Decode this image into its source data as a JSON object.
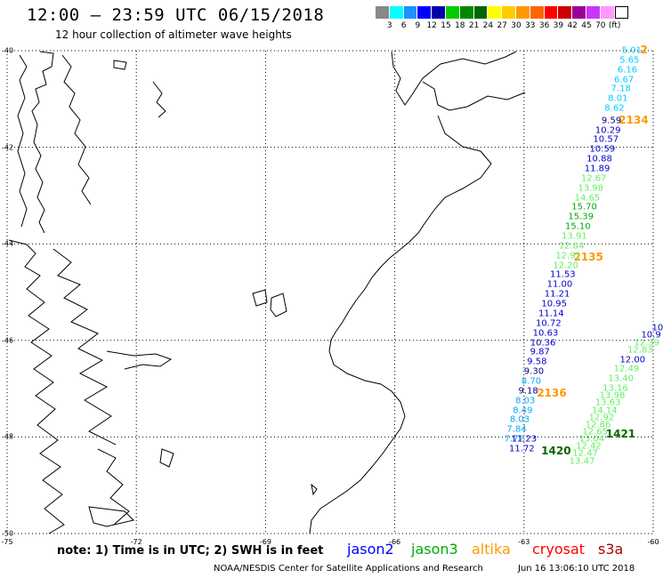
{
  "header": {
    "title": "12:00 – 23:59 UTC 06/15/2018",
    "subtitle": "12 hour collection of altimeter wave heights"
  },
  "legend": {
    "colors": [
      "#888888",
      "#00ffff",
      "#1e90ff",
      "#0000ff",
      "#0000aa",
      "#00cc00",
      "#008800",
      "#006600",
      "#ffff00",
      "#ffcc00",
      "#ff9900",
      "#ff6600",
      "#ff0000",
      "#cc0000",
      "#990099",
      "#cc33ff",
      "#ff99ff",
      "#ffffff"
    ],
    "labels": [
      "3",
      "6",
      "9",
      "12",
      "15",
      "18",
      "21",
      "24",
      "27",
      "30",
      "33",
      "36",
      "39",
      "42",
      "45",
      "70",
      "(ft)"
    ]
  },
  "axes": {
    "lon": [
      "-75",
      "-72",
      "-69",
      "-66",
      "-63",
      "-60"
    ],
    "lat": [
      "-40",
      "-42",
      "-44",
      "-46",
      "-48",
      "-50"
    ]
  },
  "observations": [
    {
      "v": "5.01",
      "c": "#00ccff",
      "lon": -60.5,
      "lat": -40.0
    },
    {
      "v": "5.65",
      "c": "#00ccff",
      "lon": -60.55,
      "lat": -40.2
    },
    {
      "v": "6.16",
      "c": "#00ccff",
      "lon": -60.6,
      "lat": -40.4
    },
    {
      "v": "6.67",
      "c": "#00ccff",
      "lon": -60.68,
      "lat": -40.6
    },
    {
      "v": "7.18",
      "c": "#00ccff",
      "lon": -60.75,
      "lat": -40.8
    },
    {
      "v": "8.01",
      "c": "#00ccff",
      "lon": -60.82,
      "lat": -41.0
    },
    {
      "v": "8.62",
      "c": "#00ccff",
      "lon": -60.9,
      "lat": -41.2
    },
    {
      "v": "9.59",
      "c": "#000080",
      "lon": -60.97,
      "lat": -41.45
    },
    {
      "v": "10.29",
      "c": "#0000cc",
      "lon": -61.05,
      "lat": -41.65
    },
    {
      "v": "10.57",
      "c": "#0000cc",
      "lon": -61.1,
      "lat": -41.85
    },
    {
      "v": "10.59",
      "c": "#0000cc",
      "lon": -61.18,
      "lat": -42.05
    },
    {
      "v": "10.88",
      "c": "#0000cc",
      "lon": -61.25,
      "lat": -42.25
    },
    {
      "v": "11.89",
      "c": "#0000cc",
      "lon": -61.3,
      "lat": -42.45
    },
    {
      "v": "12.67",
      "c": "#66ee66",
      "lon": -61.38,
      "lat": -42.65
    },
    {
      "v": "13.98",
      "c": "#66ee66",
      "lon": -61.45,
      "lat": -42.85
    },
    {
      "v": "14.65",
      "c": "#66ee66",
      "lon": -61.53,
      "lat": -43.05
    },
    {
      "v": "15.70",
      "c": "#00aa00",
      "lon": -61.6,
      "lat": -43.25
    },
    {
      "v": "15.39",
      "c": "#00aa00",
      "lon": -61.68,
      "lat": -43.45
    },
    {
      "v": "15.10",
      "c": "#00aa00",
      "lon": -61.75,
      "lat": -43.65
    },
    {
      "v": "13.91",
      "c": "#66ee66",
      "lon": -61.83,
      "lat": -43.85
    },
    {
      "v": "12.84",
      "c": "#66ee66",
      "lon": -61.9,
      "lat": -44.05
    },
    {
      "v": "12.91",
      "c": "#66ee66",
      "lon": -61.97,
      "lat": -44.25
    },
    {
      "v": "12.20",
      "c": "#66ee66",
      "lon": -62.03,
      "lat": -44.45
    },
    {
      "v": "11.53",
      "c": "#0000cc",
      "lon": -62.1,
      "lat": -44.65
    },
    {
      "v": "11.00",
      "c": "#0000cc",
      "lon": -62.17,
      "lat": -44.85
    },
    {
      "v": "11.21",
      "c": "#0000cc",
      "lon": -62.23,
      "lat": -45.05
    },
    {
      "v": "10.95",
      "c": "#0000cc",
      "lon": -62.3,
      "lat": -45.25
    },
    {
      "v": "11.14",
      "c": "#0000cc",
      "lon": -62.37,
      "lat": -45.45
    },
    {
      "v": "10.72",
      "c": "#0000cc",
      "lon": -62.43,
      "lat": -45.65
    },
    {
      "v": "10.63",
      "c": "#0000cc",
      "lon": -62.5,
      "lat": -45.85
    },
    {
      "v": "10.36",
      "c": "#0000cc",
      "lon": -62.56,
      "lat": -46.05
    },
    {
      "v": "9.87",
      "c": "#0000cc",
      "lon": -62.63,
      "lat": -46.25
    },
    {
      "v": "9.58",
      "c": "#0000cc",
      "lon": -62.7,
      "lat": -46.45
    },
    {
      "v": "9.30",
      "c": "#000080",
      "lon": -62.77,
      "lat": -46.65
    },
    {
      "v": "8.70",
      "c": "#00aaff",
      "lon": -62.83,
      "lat": -46.85
    },
    {
      "v": "9.18",
      "c": "#000080",
      "lon": -62.9,
      "lat": -47.05
    },
    {
      "v": "8.03",
      "c": "#00aaff",
      "lon": -62.97,
      "lat": -47.25
    },
    {
      "v": "8.49",
      "c": "#00aaff",
      "lon": -63.03,
      "lat": -47.45
    },
    {
      "v": "8.03",
      "c": "#00aaff",
      "lon": -63.1,
      "lat": -47.65
    },
    {
      "v": "7.84",
      "c": "#00aaff",
      "lon": -63.17,
      "lat": -47.85
    },
    {
      "v": "7.72",
      "c": "#00aaff",
      "lon": -63.23,
      "lat": -48.05
    },
    {
      "v": "11.23",
      "c": "#0000cc",
      "lon": -63.0,
      "lat": -48.05
    },
    {
      "v": "11.72",
      "c": "#0000cc",
      "lon": -63.05,
      "lat": -48.25
    },
    {
      "v": "10",
      "c": "#0000cc",
      "lon": -59.9,
      "lat": -45.75
    },
    {
      "v": "10.9",
      "c": "#0000cc",
      "lon": -60.05,
      "lat": -45.9
    },
    {
      "v": "12.39",
      "c": "#66ee66",
      "lon": -60.15,
      "lat": -46.05
    },
    {
      "v": "12.83",
      "c": "#66ee66",
      "lon": -60.3,
      "lat": -46.2
    },
    {
      "v": "12.00",
      "c": "#0000cc",
      "lon": -60.48,
      "lat": -46.4
    },
    {
      "v": "12.49",
      "c": "#66ee66",
      "lon": -60.62,
      "lat": -46.6
    },
    {
      "v": "13.40",
      "c": "#66ee66",
      "lon": -60.75,
      "lat": -46.8
    },
    {
      "v": "13.16",
      "c": "#66ee66",
      "lon": -60.88,
      "lat": -47.0
    },
    {
      "v": "13.98",
      "c": "#66ee66",
      "lon": -60.95,
      "lat": -47.15
    },
    {
      "v": "13.63",
      "c": "#66ee66",
      "lon": -61.05,
      "lat": -47.3
    },
    {
      "v": "14.14",
      "c": "#66ee66",
      "lon": -61.13,
      "lat": -47.45
    },
    {
      "v": "12.92",
      "c": "#66ee66",
      "lon": -61.2,
      "lat": -47.6
    },
    {
      "v": "12.86",
      "c": "#66ee66",
      "lon": -61.28,
      "lat": -47.75
    },
    {
      "v": "12.65",
      "c": "#66ee66",
      "lon": -61.35,
      "lat": -47.9
    },
    {
      "v": "13.04",
      "c": "#66ee66",
      "lon": -61.43,
      "lat": -48.05
    },
    {
      "v": "12.42",
      "c": "#66ee66",
      "lon": -61.5,
      "lat": -48.2
    },
    {
      "v": "12.47",
      "c": "#66ee66",
      "lon": -61.58,
      "lat": -48.35
    },
    {
      "v": "13.47",
      "c": "#66ee66",
      "lon": -61.65,
      "lat": -48.5
    }
  ],
  "passes": [
    {
      "label": "2134",
      "color": "#ff9900",
      "lon": -60.8,
      "lat": -41.45
    },
    {
      "label": "2135",
      "color": "#ff9900",
      "lon": -61.85,
      "lat": -44.3
    },
    {
      "label": "2136",
      "color": "#ff9900",
      "lon": -62.7,
      "lat": -47.1
    },
    {
      "label": "2",
      "color": "#ff9900",
      "lon": -60.3,
      "lat": -40.0
    },
    {
      "label": "1421",
      "color": "#006600",
      "lon": -61.1,
      "lat": -47.95
    },
    {
      "label": "1420",
      "color": "#006600",
      "lon": -62.6,
      "lat": -48.3
    }
  ],
  "footer": {
    "note": "note:  1) Time is in UTC;  2) SWH is in feet",
    "sats": [
      {
        "name": "jason2",
        "color": "#0000ff"
      },
      {
        "name": "jason3",
        "color": "#00aa00"
      },
      {
        "name": "altika",
        "color": "#ff9900"
      },
      {
        "name": "cryosat",
        "color": "#ff0000"
      },
      {
        "name": "s3a",
        "color": "#aa0000"
      }
    ],
    "credit": "NOAA/NESDIS Center for Satellite Applications and Research",
    "timestamp": "Jun 16 13:06:10 UTC 2018"
  }
}
